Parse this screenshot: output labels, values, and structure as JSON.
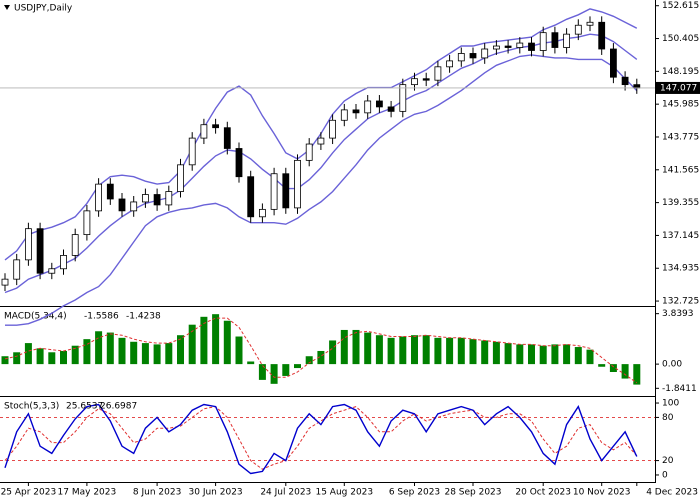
{
  "chart_data": [
    {
      "type": "candlestick",
      "title": "USDJPY,Daily",
      "open": [
        133.8,
        134.2,
        135.5,
        137.6,
        134.6,
        134.9,
        135.8,
        137.2,
        138.8,
        140.6,
        139.6,
        138.8,
        139.4,
        139.9,
        139.2,
        140.1,
        141.9,
        143.7,
        144.6,
        144.4,
        143.0,
        141.1,
        138.4,
        138.9,
        141.3,
        139.0,
        142.2,
        143.3,
        143.7,
        144.9,
        145.6,
        145.4,
        146.2,
        145.8,
        145.5,
        147.3,
        147.7,
        147.6,
        148.5,
        148.9,
        149.4,
        149.1,
        149.7,
        149.9,
        149.8,
        150.1,
        149.6,
        150.8,
        149.8,
        150.7,
        151.3,
        151.5,
        149.7,
        147.8,
        147.3
      ],
      "high": [
        134.6,
        135.9,
        138.0,
        138.0,
        135.3,
        136.2,
        137.6,
        139.2,
        141.0,
        141.0,
        140.0,
        139.8,
        140.3,
        140.3,
        140.5,
        142.3,
        144.1,
        145.0,
        145.0,
        144.8,
        143.4,
        141.5,
        139.3,
        141.7,
        141.7,
        142.6,
        143.7,
        144.1,
        145.3,
        146.0,
        146.0,
        146.6,
        146.6,
        146.2,
        147.7,
        148.1,
        148.1,
        148.9,
        149.3,
        149.8,
        149.8,
        150.1,
        150.3,
        150.3,
        150.5,
        150.5,
        151.2,
        151.2,
        151.1,
        151.7,
        151.9,
        151.9,
        150.1,
        148.2,
        147.7
      ],
      "low": [
        133.4,
        133.8,
        135.1,
        134.2,
        134.2,
        134.5,
        135.4,
        136.8,
        138.4,
        139.2,
        138.4,
        138.4,
        139.0,
        138.8,
        138.8,
        139.7,
        141.5,
        143.3,
        144.0,
        142.6,
        140.7,
        138.0,
        138.0,
        138.5,
        138.6,
        138.6,
        141.8,
        142.9,
        143.3,
        144.5,
        145.0,
        145.0,
        145.4,
        145.1,
        145.1,
        146.9,
        147.2,
        147.2,
        148.1,
        148.5,
        148.7,
        148.7,
        149.3,
        149.4,
        149.4,
        149.2,
        149.2,
        149.4,
        149.4,
        150.3,
        150.9,
        149.3,
        147.4,
        146.9,
        146.68
      ],
      "close": [
        134.2,
        135.5,
        137.6,
        134.6,
        134.9,
        135.8,
        137.2,
        138.8,
        140.6,
        139.6,
        138.8,
        139.4,
        139.9,
        139.2,
        140.1,
        141.9,
        143.7,
        144.6,
        144.4,
        143.0,
        141.1,
        138.4,
        138.9,
        141.3,
        139.0,
        142.2,
        143.3,
        143.7,
        144.9,
        145.6,
        145.4,
        146.2,
        145.8,
        145.5,
        147.3,
        147.7,
        147.6,
        148.5,
        148.9,
        149.4,
        149.1,
        149.7,
        149.9,
        149.8,
        150.1,
        149.6,
        150.8,
        149.8,
        150.7,
        151.3,
        151.5,
        149.7,
        147.8,
        147.3,
        147.077
      ],
      "upper": [
        135.5,
        136.1,
        137.2,
        137.5,
        137.7,
        138.0,
        138.4,
        139.3,
        140.5,
        141.1,
        141.2,
        141.1,
        140.8,
        140.6,
        140.7,
        141.5,
        143.0,
        144.4,
        145.7,
        146.8,
        147.2,
        146.6,
        145.2,
        144.0,
        142.7,
        142.3,
        142.9,
        144.0,
        145.3,
        146.2,
        146.7,
        147.1,
        147.1,
        147.1,
        147.5,
        147.9,
        148.3,
        148.9,
        149.4,
        149.9,
        149.9,
        150.1,
        150.2,
        150.3,
        150.4,
        150.5,
        151.0,
        151.3,
        151.7,
        152.0,
        152.4,
        152.2,
        151.9,
        151.5,
        151.1
      ],
      "middle": [
        133.3,
        133.6,
        134.2,
        134.5,
        134.8,
        135.2,
        135.6,
        136.3,
        137.1,
        137.8,
        138.4,
        138.9,
        139.3,
        139.5,
        139.7,
        140.2,
        141.0,
        141.8,
        142.5,
        142.9,
        142.8,
        142.3,
        141.6,
        141.0,
        140.3,
        140.3,
        140.9,
        141.7,
        142.7,
        143.6,
        144.3,
        145.0,
        145.4,
        145.7,
        146.2,
        146.6,
        146.9,
        147.4,
        147.9,
        148.4,
        148.7,
        149.1,
        149.4,
        149.6,
        149.8,
        149.9,
        150.1,
        150.2,
        150.4,
        150.5,
        150.7,
        150.6,
        150.2,
        149.6,
        149.0
      ],
      "lower": [
        131.1,
        131.1,
        131.2,
        131.5,
        131.9,
        132.4,
        132.8,
        133.3,
        133.7,
        134.5,
        135.6,
        136.7,
        137.8,
        138.4,
        138.7,
        138.9,
        139.0,
        139.2,
        139.3,
        139.0,
        138.4,
        138.0,
        138.0,
        138.0,
        137.9,
        138.3,
        138.9,
        139.4,
        140.1,
        141.0,
        141.9,
        142.9,
        143.7,
        144.3,
        144.9,
        145.3,
        145.5,
        145.9,
        146.4,
        146.9,
        147.5,
        148.1,
        148.6,
        148.9,
        149.2,
        149.3,
        149.2,
        149.1,
        149.1,
        149.0,
        149.0,
        149.0,
        148.5,
        147.7,
        146.9
      ],
      "band_color": "#6a62d8",
      "up_color": "#ffffff",
      "down_color": "#000000",
      "ylim": [
        132.46,
        153.0
      ],
      "yticks": [
        {
          "value": 152.615,
          "label": "152.615"
        },
        {
          "value": 150.405,
          "label": "150.405"
        },
        {
          "value": 148.195,
          "label": "148.195"
        },
        {
          "value": 145.985,
          "label": "145.985"
        },
        {
          "value": 143.775,
          "label": "143.775"
        },
        {
          "value": 141.565,
          "label": "141.565"
        },
        {
          "value": 139.355,
          "label": "139.355"
        },
        {
          "value": 137.145,
          "label": "137.145"
        },
        {
          "value": 134.935,
          "label": "134.935"
        },
        {
          "value": 132.725,
          "label": "132.725"
        }
      ]
    },
    {
      "type": "macd",
      "title": "MACD(5,34,4)",
      "histogram": {
        "color": "#008000",
        "values": [
          0.6,
          0.9,
          1.6,
          1.2,
          0.9,
          1.0,
          1.4,
          1.9,
          2.5,
          2.4,
          2.0,
          1.7,
          1.6,
          1.5,
          1.6,
          2.2,
          3.0,
          3.6,
          3.8,
          3.3,
          2.1,
          0.2,
          -1.2,
          -1.5,
          -0.9,
          -0.3,
          0.6,
          1.0,
          1.8,
          2.6,
          2.6,
          2.4,
          2.2,
          2.0,
          2.1,
          2.2,
          2.2,
          2.0,
          2.0,
          2.0,
          1.9,
          1.8,
          1.7,
          1.6,
          1.5,
          1.5,
          1.4,
          1.5,
          1.5,
          1.3,
          1.1,
          -0.2,
          -0.6,
          -1.1,
          -1.5586
        ]
      },
      "signal": {
        "color": "#e03030",
        "values": [
          0.4,
          0.6,
          1.0,
          1.2,
          1.1,
          1.0,
          1.2,
          1.5,
          2.0,
          2.3,
          2.2,
          1.9,
          1.7,
          1.6,
          1.6,
          1.9,
          2.5,
          3.1,
          3.5,
          3.5,
          2.8,
          1.4,
          -0.1,
          -1.0,
          -1.0,
          -0.6,
          0.1,
          0.6,
          1.2,
          2.0,
          2.4,
          2.5,
          2.3,
          2.1,
          2.1,
          2.1,
          2.2,
          2.1,
          2.0,
          2.0,
          1.9,
          1.8,
          1.7,
          1.6,
          1.5,
          1.5,
          1.4,
          1.4,
          1.5,
          1.4,
          1.2,
          0.5,
          -0.2,
          -0.8,
          -1.4238
        ]
      },
      "ylim": [
        -2.35,
        4.27
      ],
      "yticks": [
        3.8393,
        {
          "value": 0,
          "label": "0.00"
        },
        -1.8411
      ]
    },
    {
      "type": "stochastic",
      "title": "Stoch(5,3,3)",
      "k": {
        "color": "#0000cd",
        "values": [
          10,
          60,
          85,
          40,
          30,
          55,
          78,
          95,
          98,
          75,
          40,
          30,
          65,
          80,
          60,
          70,
          90,
          98,
          95,
          60,
          15,
          2,
          5,
          30,
          20,
          65,
          85,
          70,
          95,
          98,
          90,
          60,
          40,
          75,
          90,
          85,
          60,
          85,
          90,
          95,
          90,
          70,
          85,
          95,
          80,
          60,
          30,
          15,
          70,
          95,
          50,
          20,
          40,
          60,
          25.6537
        ]
      },
      "d": {
        "color": "#e03030",
        "values": [
          20,
          40,
          65,
          60,
          45,
          45,
          60,
          80,
          92,
          85,
          65,
          45,
          50,
          65,
          65,
          68,
          80,
          92,
          95,
          80,
          50,
          20,
          8,
          15,
          20,
          40,
          65,
          75,
          85,
          90,
          95,
          80,
          60,
          60,
          75,
          85,
          75,
          80,
          85,
          88,
          90,
          80,
          80,
          85,
          85,
          75,
          50,
          30,
          40,
          65,
          70,
          45,
          35,
          45,
          26.6987
        ]
      },
      "levels": [
        80,
        20
      ],
      "ylim": [
        -7,
        107
      ],
      "yticks": [
        100,
        80,
        20,
        0
      ],
      "categories": [
        null,
        null,
        "25 Apr 2023",
        null,
        null,
        null,
        null,
        "17 May 2023",
        null,
        null,
        null,
        null,
        null,
        "8 Jun 2023",
        null,
        null,
        null,
        null,
        "30 Jun 2023",
        null,
        null,
        null,
        null,
        null,
        "24 Jul 2023",
        null,
        null,
        null,
        null,
        "15 Aug 2023",
        null,
        null,
        null,
        null,
        null,
        "6 Sep 2023",
        null,
        null,
        null,
        null,
        "28 Sep 2023",
        null,
        null,
        null,
        null,
        null,
        "20 Oct 2023",
        null,
        null,
        null,
        null,
        "10 Nov 2023",
        null,
        null,
        "4 Dec 2023"
      ]
    }
  ]
}
